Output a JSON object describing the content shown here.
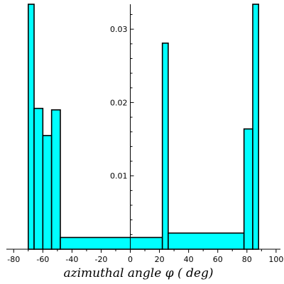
{
  "chart_data": {
    "type": "bar",
    "title": "",
    "xlabel": "azimuthal angle φ ( deg)",
    "ylabel": "",
    "xlim": [
      -85,
      103
    ],
    "ylim": [
      0,
      0.0334
    ],
    "xticks": [
      -80,
      -60,
      -40,
      -20,
      0,
      20,
      40,
      60,
      80,
      100
    ],
    "xtick_labels": [
      "-80",
      "-60",
      "-40",
      "-20",
      "0",
      "20",
      "40",
      "60",
      "80",
      "100"
    ],
    "yticks": [
      0.01,
      0.02,
      0.03
    ],
    "ytick_labels": [
      "0.01",
      "0.02",
      "0.03"
    ],
    "grid": false,
    "bar_color": "#00ffff",
    "bins": [
      {
        "x0": -70,
        "x1": -66,
        "y": 0.0334
      },
      {
        "x0": -66,
        "x1": -60,
        "y": 0.0192
      },
      {
        "x0": -60,
        "x1": -54,
        "y": 0.0155
      },
      {
        "x0": -54,
        "x1": -48,
        "y": 0.019
      },
      {
        "x0": -48,
        "x1": 22,
        "y": 0.0016
      },
      {
        "x0": 22,
        "x1": 26,
        "y": 0.0281
      },
      {
        "x0": 26,
        "x1": 78,
        "y": 0.0022
      },
      {
        "x0": 78,
        "x1": 84,
        "y": 0.0164
      },
      {
        "x0": 84,
        "x1": 88,
        "y": 0.0334
      }
    ]
  }
}
